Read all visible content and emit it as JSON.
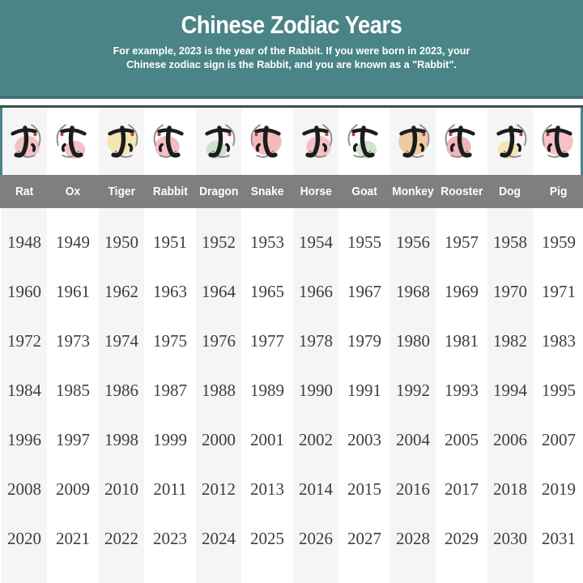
{
  "header": {
    "title": "Chinese Zodiac Years",
    "subtitle_line1": "For example, 2023 is the year of the Rabbit. If you were born in 2023, your",
    "subtitle_line2": "Chinese zodiac sign is the Rabbit, and you are known as a \"Rabbit\"."
  },
  "zodiac": {
    "columns": [
      {
        "name": "Rat",
        "hanzi": "子",
        "icon": "rat-zodiac-icon",
        "blob_color": "#f2b4b9"
      },
      {
        "name": "Ox",
        "hanzi": "丑",
        "icon": "ox-zodiac-icon",
        "blob_color": "#f2b0b6"
      },
      {
        "name": "Tiger",
        "hanzi": "寅",
        "icon": "tiger-zodiac-icon",
        "blob_color": "#f3e2a2"
      },
      {
        "name": "Rabbit",
        "hanzi": "卯",
        "icon": "rabbit-zodiac-icon",
        "blob_color": "#f1aeb4"
      },
      {
        "name": "Dragon",
        "hanzi": "辰",
        "icon": "dragon-zodiac-icon",
        "blob_color": "#c3ddc1"
      },
      {
        "name": "Snake",
        "hanzi": "巳",
        "icon": "snake-zodiac-icon",
        "blob_color": "#f0a9ae"
      },
      {
        "name": "Horse",
        "hanzi": "午",
        "icon": "horse-zodiac-icon",
        "blob_color": "#f2b4b9"
      },
      {
        "name": "Goat",
        "hanzi": "未",
        "icon": "goat-zodiac-icon",
        "blob_color": "#c3ddc1"
      },
      {
        "name": "Monkey",
        "hanzi": "申",
        "icon": "monkey-zodiac-icon",
        "blob_color": "#efbf8e"
      },
      {
        "name": "Rooster",
        "hanzi": "酉",
        "icon": "rooster-zodiac-icon",
        "blob_color": "#efa2a8"
      },
      {
        "name": "Dog",
        "hanzi": "戌",
        "icon": "dog-zodiac-icon",
        "blob_color": "#f3e2a2"
      },
      {
        "name": "Pig",
        "hanzi": "亥",
        "icon": "pig-zodiac-icon",
        "blob_color": "#f2b4b9"
      }
    ]
  },
  "years": {
    "rows": [
      [
        "1948",
        "1949",
        "1950",
        "1951",
        "1952",
        "1953",
        "1954",
        "1955",
        "1956",
        "1957",
        "1958",
        "1959"
      ],
      [
        "1960",
        "1961",
        "1962",
        "1963",
        "1964",
        "1965",
        "1966",
        "1967",
        "1968",
        "1969",
        "1970",
        "1971"
      ],
      [
        "1972",
        "1973",
        "1974",
        "1975",
        "1976",
        "1977",
        "1978",
        "1979",
        "1980",
        "1981",
        "1982",
        "1983"
      ],
      [
        "1984",
        "1985",
        "1986",
        "1987",
        "1988",
        "1989",
        "1990",
        "1991",
        "1992",
        "1993",
        "1994",
        "1995"
      ],
      [
        "1996",
        "1997",
        "1998",
        "1999",
        "2000",
        "2001",
        "2002",
        "2003",
        "2004",
        "2005",
        "2006",
        "2007"
      ],
      [
        "2008",
        "2009",
        "2010",
        "2011",
        "2012",
        "2013",
        "2014",
        "2015",
        "2016",
        "2017",
        "2018",
        "2019"
      ],
      [
        "2020",
        "2021",
        "2022",
        "2023",
        "2024",
        "2025",
        "2026",
        "2027",
        "2028",
        "2029",
        "2030",
        "2031"
      ]
    ]
  },
  "colors": {
    "teal_header": "#4a8486",
    "header_bottom_line": "#3b6e70",
    "card_top_border": "#414b4d",
    "names_bar": "#7f7f7f",
    "stripe": "#f5f5f5",
    "year_text": "#3e3e3e",
    "ink": "#1c1c1c"
  },
  "chart_data": {
    "type": "table",
    "title": "Chinese Zodiac Years",
    "subtitle": "For example, 2023 is the year of the Rabbit. If you were born in 2023, your Chinese zodiac sign is the Rabbit, and you are known as a \"Rabbit\".",
    "columns": [
      "Rat",
      "Ox",
      "Tiger",
      "Rabbit",
      "Dragon",
      "Snake",
      "Horse",
      "Goat",
      "Monkey",
      "Rooster",
      "Dog",
      "Pig"
    ],
    "rows": [
      [
        1948,
        1949,
        1950,
        1951,
        1952,
        1953,
        1954,
        1955,
        1956,
        1957,
        1958,
        1959
      ],
      [
        1960,
        1961,
        1962,
        1963,
        1964,
        1965,
        1966,
        1967,
        1968,
        1969,
        1970,
        1971
      ],
      [
        1972,
        1973,
        1974,
        1975,
        1976,
        1977,
        1978,
        1979,
        1980,
        1981,
        1982,
        1983
      ],
      [
        1984,
        1985,
        1986,
        1987,
        1988,
        1989,
        1990,
        1991,
        1992,
        1993,
        1994,
        1995
      ],
      [
        1996,
        1997,
        1998,
        1999,
        2000,
        2001,
        2002,
        2003,
        2004,
        2005,
        2006,
        2007
      ],
      [
        2008,
        2009,
        2010,
        2011,
        2012,
        2013,
        2014,
        2015,
        2016,
        2017,
        2018,
        2019
      ],
      [
        2020,
        2021,
        2022,
        2023,
        2024,
        2025,
        2026,
        2027,
        2028,
        2029,
        2030,
        2031
      ]
    ],
    "layout": {
      "grid": "alternating light column stripes",
      "header_row": "gray bar with white labels"
    }
  }
}
